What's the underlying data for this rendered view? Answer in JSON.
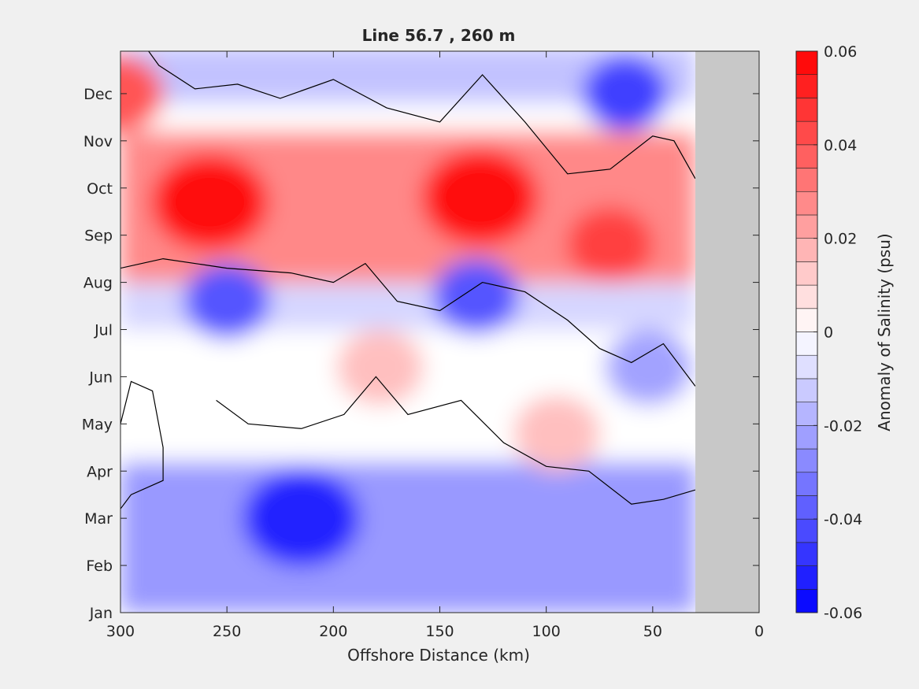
{
  "chart_data": {
    "type": "heatmap",
    "title": "Line 56.7 , 260 m",
    "xlabel": "Offshore Distance (km)",
    "ylabel": "",
    "xlim": [
      300,
      0
    ],
    "x_reversed": true,
    "x_ticks": [
      300,
      250,
      200,
      150,
      100,
      50,
      0
    ],
    "y_ticks": [
      "Jan",
      "Feb",
      "Mar",
      "Apr",
      "May",
      "Jun",
      "Jul",
      "Aug",
      "Sep",
      "Oct",
      "Nov",
      "Dec"
    ],
    "colorbar": {
      "label": "Anomaly of Salinity (psu)",
      "range": [
        -0.06,
        0.06
      ],
      "ticks": [
        "0.06",
        "0.04",
        "0.02",
        "0",
        "-0.02",
        "-0.04",
        "-0.06"
      ],
      "tick_values": [
        0.06,
        0.04,
        0.02,
        0,
        -0.02,
        -0.04,
        -0.06
      ],
      "levels": 24,
      "colormap": "blue-white-red"
    },
    "data_extent_km": [
      30,
      300
    ],
    "no_data_region_km": [
      0,
      30
    ],
    "contour_levels": [
      0
    ],
    "features": [
      {
        "kind": "positive",
        "x": 258,
        "y": 8.7,
        "value": 0.058
      },
      {
        "kind": "positive",
        "x": 131,
        "y": 8.8,
        "value": 0.058
      },
      {
        "kind": "positive",
        "x": 70,
        "y": 7.8,
        "value": 0.045
      },
      {
        "kind": "positive",
        "x": 300,
        "y": 11.0,
        "value": 0.04
      },
      {
        "kind": "negative",
        "x": 215,
        "y": 2.0,
        "value": -0.052
      },
      {
        "kind": "negative",
        "x": 133,
        "y": 6.7,
        "value": -0.04
      },
      {
        "kind": "negative",
        "x": 250,
        "y": 6.6,
        "value": -0.04
      },
      {
        "kind": "negative",
        "x": 63,
        "y": 11.0,
        "value": -0.045
      },
      {
        "kind": "negative",
        "x": 52,
        "y": 5.2,
        "value": -0.022
      },
      {
        "kind": "positive",
        "x": 178,
        "y": 5.2,
        "value": 0.015
      },
      {
        "kind": "positive",
        "x": 95,
        "y": 3.8,
        "value": 0.015
      }
    ],
    "grid": false,
    "legend": "colorbar-right",
    "colors": {
      "positive": "#ff0000",
      "negative": "#0000ff",
      "zero": "#ffffff",
      "no_data": "#c8c8c8",
      "contour": "#000000"
    }
  }
}
